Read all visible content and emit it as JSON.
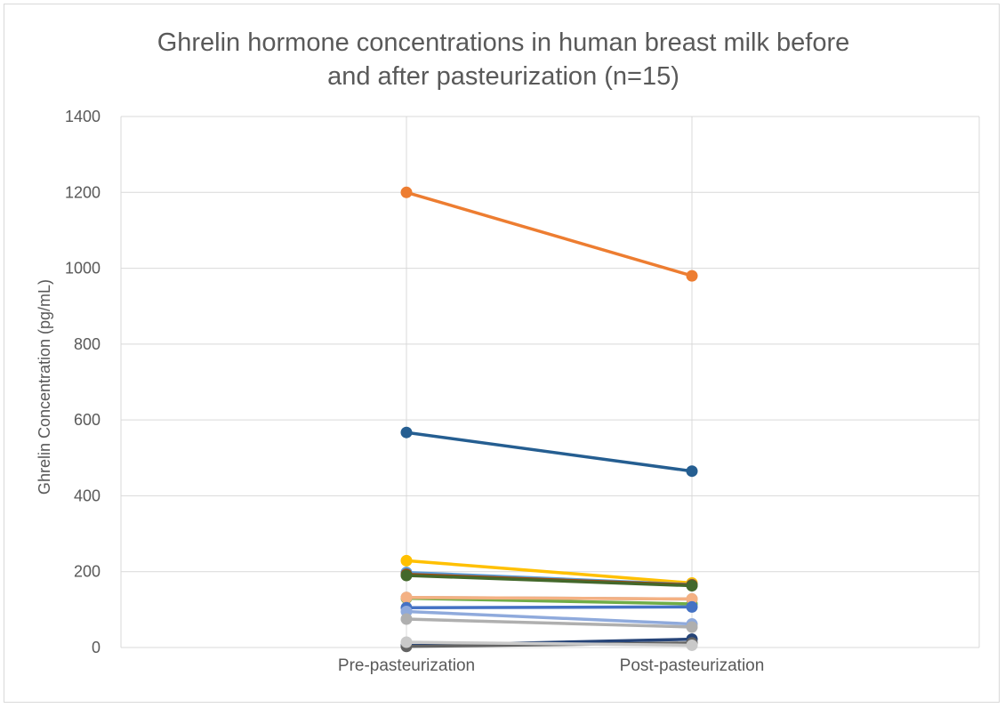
{
  "chart_data": {
    "type": "line",
    "title_lines": [
      "Ghrelin hormone concentrations in human breast milk before",
      "and after pasteurization (n=15)"
    ],
    "xlabel": "",
    "ylabel": "Ghrelin Concentration (pg/mL)",
    "categories": [
      "Pre-pasteurization",
      "Post-pasteurization"
    ],
    "ylim": [
      0,
      1400
    ],
    "yticks": [
      "0",
      "200",
      "400",
      "600",
      "800",
      "1000",
      "1200",
      "1400"
    ],
    "grid": true,
    "legend": "none",
    "series": [
      {
        "color": "#ED7D31",
        "values": [
          1200,
          980
        ]
      },
      {
        "color": "#255E91",
        "values": [
          567,
          465
        ]
      },
      {
        "color": "#FFC000",
        "values": [
          229,
          170
        ]
      },
      {
        "color": "#5B9BD5",
        "values": [
          198,
          166
        ]
      },
      {
        "color": "#9E480E",
        "values": [
          193,
          165
        ]
      },
      {
        "color": "#43682B",
        "values": [
          190,
          163
        ]
      },
      {
        "color": "#A5A5A5",
        "values": [
          132,
          128
        ]
      },
      {
        "color": "#70AD47",
        "values": [
          130,
          115
        ]
      },
      {
        "color": "#F4B183",
        "values": [
          132,
          128
        ]
      },
      {
        "color": "#4472C4",
        "values": [
          105,
          107
        ]
      },
      {
        "color": "#8FAADC",
        "values": [
          95,
          62
        ]
      },
      {
        "color": "#AFAFAF",
        "values": [
          75,
          54
        ]
      },
      {
        "color": "#264478",
        "values": [
          5,
          22
        ]
      },
      {
        "color": "#636363",
        "values": [
          3,
          12
        ]
      },
      {
        "color": "#C9C9C9",
        "values": [
          14,
          6
        ]
      }
    ]
  }
}
